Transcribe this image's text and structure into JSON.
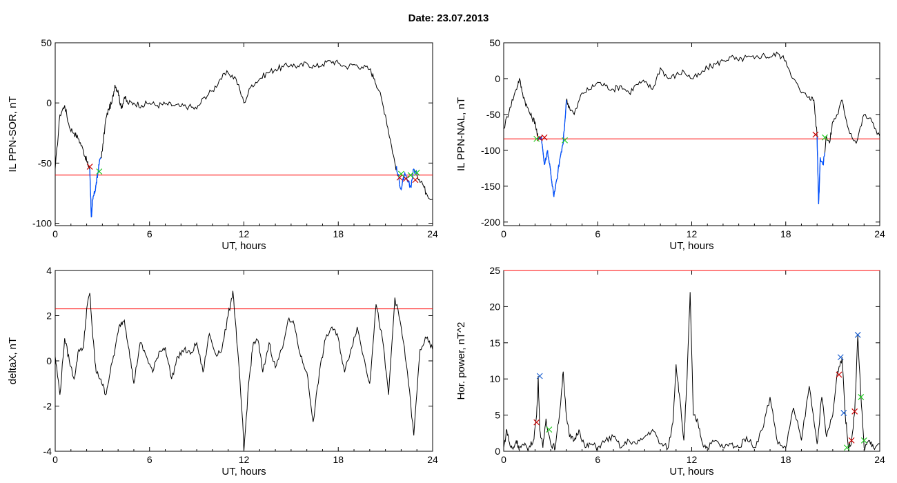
{
  "title": "Date:  23.07.2013",
  "colors": {
    "black": "#000000",
    "threshold": "#ff0000",
    "event": "#0050ff",
    "cross_red": "#cc0000",
    "cross_green": "#22cc22",
    "cross_blue": "#1a5fd0"
  },
  "chart_data": [
    {
      "type": "line",
      "name": "sor",
      "xlabel": "UT, hours",
      "ylabel": "IL PPN-SOR, nT",
      "xlim": [
        0,
        24
      ],
      "ylim": [
        -102,
        50
      ],
      "xticks": [
        0,
        6,
        12,
        18,
        24
      ],
      "yticks": [
        50,
        0,
        -50,
        -100
      ],
      "threshold": -60,
      "x": [
        0,
        0.3,
        0.6,
        0.9,
        1.2,
        1.5,
        1.8,
        2.0,
        2.1,
        2.2,
        2.3,
        2.4,
        2.5,
        2.6,
        2.7,
        2.8,
        3.0,
        3.2,
        3.4,
        3.6,
        3.8,
        4.0,
        4.2,
        4.4,
        4.6,
        5.0,
        5.5,
        6.0,
        6.5,
        7.0,
        7.5,
        8.0,
        8.5,
        9.0,
        9.5,
        10.0,
        10.5,
        11.0,
        11.5,
        12.0,
        12.5,
        13.0,
        13.5,
        14.0,
        14.5,
        15.0,
        15.5,
        16.0,
        16.5,
        17.0,
        17.5,
        18.0,
        18.5,
        19.0,
        19.5,
        20.0,
        20.3,
        20.6,
        21.0,
        21.3,
        21.6,
        21.8,
        22.0,
        22.2,
        22.4,
        22.6,
        22.8,
        23.0,
        23.3,
        23.6,
        24.0
      ],
      "y": [
        -55,
        -10,
        -2,
        -20,
        -25,
        -30,
        -40,
        -48,
        -52,
        -55,
        -95,
        -80,
        -75,
        -68,
        -60,
        -50,
        -40,
        -15,
        -5,
        0,
        15,
        10,
        -5,
        5,
        0,
        0,
        -2,
        0,
        -2,
        -1,
        -2,
        -3,
        -3,
        -5,
        5,
        10,
        20,
        25,
        20,
        0,
        15,
        20,
        25,
        28,
        30,
        32,
        30,
        33,
        30,
        32,
        35,
        33,
        30,
        32,
        30,
        28,
        20,
        10,
        -10,
        -30,
        -50,
        -60,
        -72,
        -60,
        -65,
        -70,
        -55,
        -60,
        -65,
        -75,
        -80
      ],
      "event_segments": [
        [
          2.2,
          2.9
        ],
        [
          21.7,
          23.0
        ]
      ],
      "markers_red": [
        [
          2.2,
          -53
        ],
        [
          21.9,
          -62
        ],
        [
          22.3,
          -63
        ],
        [
          22.9,
          -64
        ]
      ],
      "markers_green": [
        [
          2.8,
          -57
        ],
        [
          22.0,
          -59
        ],
        [
          22.6,
          -60
        ],
        [
          23.0,
          -58
        ]
      ]
    },
    {
      "type": "line",
      "name": "nal",
      "xlabel": "UT, hours",
      "ylabel": "IL PPN-NAL, nT",
      "xlim": [
        0,
        24
      ],
      "ylim": [
        -205,
        50
      ],
      "xticks": [
        0,
        6,
        12,
        18,
        24
      ],
      "yticks": [
        50,
        0,
        -50,
        -100,
        -150,
        -200
      ],
      "threshold": -84,
      "x": [
        0,
        0.4,
        0.8,
        1.0,
        1.2,
        1.5,
        1.8,
        2.0,
        2.2,
        2.4,
        2.6,
        2.8,
        3.0,
        3.2,
        3.4,
        3.6,
        3.8,
        4.0,
        4.2,
        4.5,
        5.0,
        5.5,
        6.0,
        6.5,
        7.0,
        7.5,
        8.0,
        8.5,
        9.0,
        9.5,
        10.0,
        10.5,
        11.0,
        11.5,
        12.0,
        12.5,
        13.0,
        13.5,
        14.0,
        14.5,
        15.0,
        15.5,
        16.0,
        16.5,
        17.0,
        17.5,
        18.0,
        18.5,
        19.0,
        19.5,
        19.8,
        20.0,
        20.1,
        20.2,
        20.4,
        20.6,
        20.8,
        21.0,
        21.3,
        21.6,
        22.0,
        22.5,
        23.0,
        23.5,
        24.0
      ],
      "y": [
        -70,
        -40,
        -15,
        0,
        -20,
        -40,
        -55,
        -60,
        -85,
        -80,
        -120,
        -100,
        -130,
        -165,
        -140,
        -110,
        -90,
        -30,
        -40,
        -50,
        -20,
        -15,
        -5,
        -10,
        -15,
        -10,
        -20,
        -8,
        -5,
        -15,
        15,
        0,
        5,
        10,
        0,
        5,
        15,
        20,
        25,
        30,
        25,
        30,
        28,
        33,
        30,
        35,
        25,
        0,
        -20,
        -25,
        -30,
        -80,
        -175,
        -110,
        -120,
        -80,
        -90,
        -60,
        -50,
        -30,
        -70,
        -90,
        -50,
        -60,
        -80
      ],
      "event_segments": [
        [
          2.2,
          4.0
        ],
        [
          20.0,
          20.5
        ]
      ],
      "markers_red": [
        [
          2.3,
          -83
        ],
        [
          2.6,
          -82
        ],
        [
          19.9,
          -78
        ]
      ],
      "markers_green": [
        [
          2.1,
          -84
        ],
        [
          3.9,
          -86
        ],
        [
          20.5,
          -82
        ]
      ]
    },
    {
      "type": "line",
      "name": "deltax",
      "xlabel": "UT, hours",
      "ylabel": "deltaX, nT",
      "xlim": [
        0,
        24
      ],
      "ylim": [
        -4,
        4
      ],
      "xticks": [
        0,
        6,
        12,
        18,
        24
      ],
      "yticks": [
        4,
        2,
        0,
        -2,
        -4
      ],
      "threshold": 2.3,
      "x": [
        0,
        0.3,
        0.6,
        0.9,
        1.2,
        1.5,
        1.8,
        2.0,
        2.2,
        2.4,
        2.6,
        2.9,
        3.2,
        3.5,
        3.8,
        4.1,
        4.4,
        4.7,
        5.0,
        5.4,
        5.8,
        6.2,
        6.6,
        7.0,
        7.4,
        7.8,
        8.2,
        8.6,
        9.0,
        9.4,
        9.8,
        10.2,
        10.6,
        11.0,
        11.3,
        11.6,
        11.9,
        12.0,
        12.3,
        12.6,
        12.9,
        13.2,
        13.6,
        14.0,
        14.4,
        14.8,
        15.2,
        15.6,
        16.0,
        16.4,
        16.8,
        17.2,
        17.6,
        18.0,
        18.4,
        18.8,
        19.2,
        19.6,
        20.0,
        20.4,
        20.8,
        21.2,
        21.6,
        22.0,
        22.4,
        22.8,
        23.2,
        23.6,
        24.0
      ],
      "y": [
        0.2,
        -1.5,
        1.0,
        0,
        -0.8,
        0.5,
        0.6,
        2.3,
        3.0,
        1.0,
        -0.5,
        -0.8,
        -1.5,
        -0.5,
        0.5,
        1.6,
        1.8,
        0.5,
        -1.0,
        0.8,
        0.2,
        -0.5,
        0.4,
        0.6,
        -0.8,
        0.2,
        0.5,
        0.3,
        0.8,
        -0.5,
        1.2,
        0.3,
        0.5,
        2.0,
        3.1,
        0.5,
        -2.5,
        -4.0,
        -1.0,
        0.8,
        0.9,
        -0.5,
        0.8,
        -0.3,
        0.5,
        1.8,
        1.6,
        0.2,
        -0.5,
        -2.7,
        -0.5,
        1.0,
        1.5,
        1.0,
        -0.5,
        0.5,
        1.5,
        0.2,
        -1.0,
        2.5,
        1.0,
        -1.5,
        2.8,
        1.5,
        -0.5,
        -3.3,
        0.5,
        1.0,
        0.5
      ],
      "event_segments": [],
      "markers_red": [],
      "markers_green": []
    },
    {
      "type": "line",
      "name": "power",
      "xlabel": "UT, hours",
      "ylabel": "Hor. power, nT^2",
      "xlim": [
        0,
        24
      ],
      "ylim": [
        0,
        25
      ],
      "xticks": [
        0,
        6,
        12,
        18,
        24
      ],
      "yticks": [
        25,
        20,
        15,
        10,
        5,
        0
      ],
      "threshold": 25,
      "x": [
        0,
        0.2,
        0.4,
        0.6,
        0.8,
        1.0,
        1.3,
        1.6,
        1.9,
        2.1,
        2.2,
        2.3,
        2.5,
        2.7,
        3.0,
        3.3,
        3.6,
        3.8,
        4.0,
        4.2,
        4.5,
        4.8,
        5.2,
        5.6,
        6.0,
        6.5,
        7.0,
        7.5,
        8.0,
        8.5,
        9.0,
        9.5,
        10.0,
        10.5,
        10.8,
        11.0,
        11.2,
        11.5,
        11.7,
        11.9,
        12.1,
        12.4,
        12.7,
        13.0,
        13.5,
        14.0,
        14.5,
        15.0,
        15.5,
        16.0,
        16.5,
        17.0,
        17.5,
        18.0,
        18.5,
        19.0,
        19.5,
        20.0,
        20.3,
        20.6,
        21.0,
        21.3,
        21.6,
        21.8,
        22.0,
        22.2,
        22.4,
        22.6,
        22.8,
        23.0,
        23.3,
        23.6,
        24.0
      ],
      "y": [
        0.5,
        3.0,
        0.8,
        0.3,
        1.5,
        0.5,
        0.8,
        0.4,
        1.5,
        5.0,
        10.4,
        3.0,
        0.5,
        4.5,
        1.0,
        0.5,
        6.0,
        11.0,
        5.0,
        2.0,
        1.5,
        3.0,
        0.5,
        1.0,
        0.5,
        1.5,
        2.0,
        0.5,
        1.5,
        1.0,
        2.0,
        3.0,
        1.0,
        0.5,
        4.0,
        12.0,
        8.0,
        1.5,
        10.0,
        22.0,
        5.0,
        4.0,
        1.0,
        0.5,
        1.5,
        0.5,
        1.0,
        0.5,
        2.0,
        0.5,
        3.0,
        7.5,
        1.0,
        0.5,
        6.0,
        1.5,
        9.0,
        1.0,
        7.5,
        2.0,
        5.0,
        11.0,
        13.0,
        5.0,
        0.5,
        1.5,
        5.5,
        16.0,
        7.5,
        0.5,
        1.5,
        0.5,
        1.0
      ],
      "event_segments": [],
      "markers_red": [
        [
          2.1,
          4.0
        ],
        [
          21.4,
          10.6
        ],
        [
          22.2,
          1.5
        ],
        [
          22.4,
          5.5
        ]
      ],
      "markers_green": [
        [
          2.9,
          3.0
        ],
        [
          21.9,
          0.5
        ],
        [
          22.8,
          7.5
        ],
        [
          23.0,
          1.5
        ]
      ],
      "markers_blue": [
        [
          2.3,
          10.4
        ],
        [
          21.5,
          13.0
        ],
        [
          21.7,
          5.3
        ],
        [
          22.6,
          16.1
        ]
      ]
    }
  ]
}
